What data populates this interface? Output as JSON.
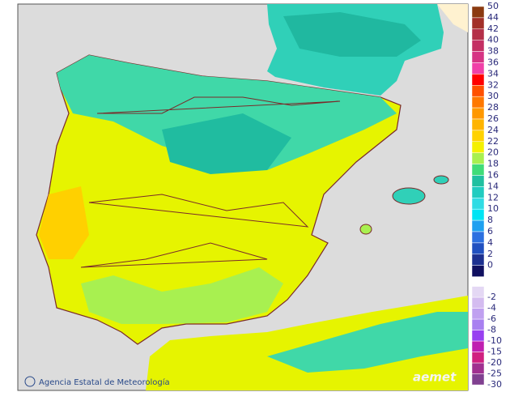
{
  "map": {
    "attribution": "Agencia Estatal de Meteorología",
    "logo": "aemet"
  },
  "legend": {
    "entries": [
      {
        "label": 50,
        "color": "#8b3a10"
      },
      {
        "label": 44,
        "color": "#a23028"
      },
      {
        "label": 42,
        "color": "#b43048"
      },
      {
        "label": 40,
        "color": "#c43064"
      },
      {
        "label": 38,
        "color": "#d63484"
      },
      {
        "label": 36,
        "color": "#f040a8"
      },
      {
        "label": 34,
        "color": "#ff0000"
      },
      {
        "label": 32,
        "color": "#ff5000"
      },
      {
        "label": 30,
        "color": "#ff7800"
      },
      {
        "label": 28,
        "color": "#ff9800"
      },
      {
        "label": 26,
        "color": "#ffb400"
      },
      {
        "label": 24,
        "color": "#ffd200"
      },
      {
        "label": 22,
        "color": "#f4f000"
      },
      {
        "label": 20,
        "color": "#a8f050"
      },
      {
        "label": 18,
        "color": "#40dc78"
      },
      {
        "label": 16,
        "color": "#20c0a0"
      },
      {
        "label": 14,
        "color": "#20ccc0"
      },
      {
        "label": 12,
        "color": "#30dce4"
      },
      {
        "label": 10,
        "color": "#00e4f4"
      },
      {
        "label": 8,
        "color": "#1ea0f0"
      },
      {
        "label": 6,
        "color": "#2c70e0"
      },
      {
        "label": 4,
        "color": "#2050c0"
      },
      {
        "label": 2,
        "color": "#1c3090"
      },
      {
        "label": 0,
        "color": "#101060"
      },
      {
        "label": -2,
        "color": "#e4d8f4"
      },
      {
        "label": -4,
        "color": "#d4bcf0"
      },
      {
        "label": -6,
        "color": "#c0a0f0"
      },
      {
        "label": -8,
        "color": "#a880f0"
      },
      {
        "label": -10,
        "color": "#9840f0"
      },
      {
        "label": -15,
        "color": "#c020b0"
      },
      {
        "label": -20,
        "color": "#d02080"
      },
      {
        "label": -25,
        "color": "#a03090"
      },
      {
        "label": -30,
        "color": "#804090"
      }
    ]
  }
}
